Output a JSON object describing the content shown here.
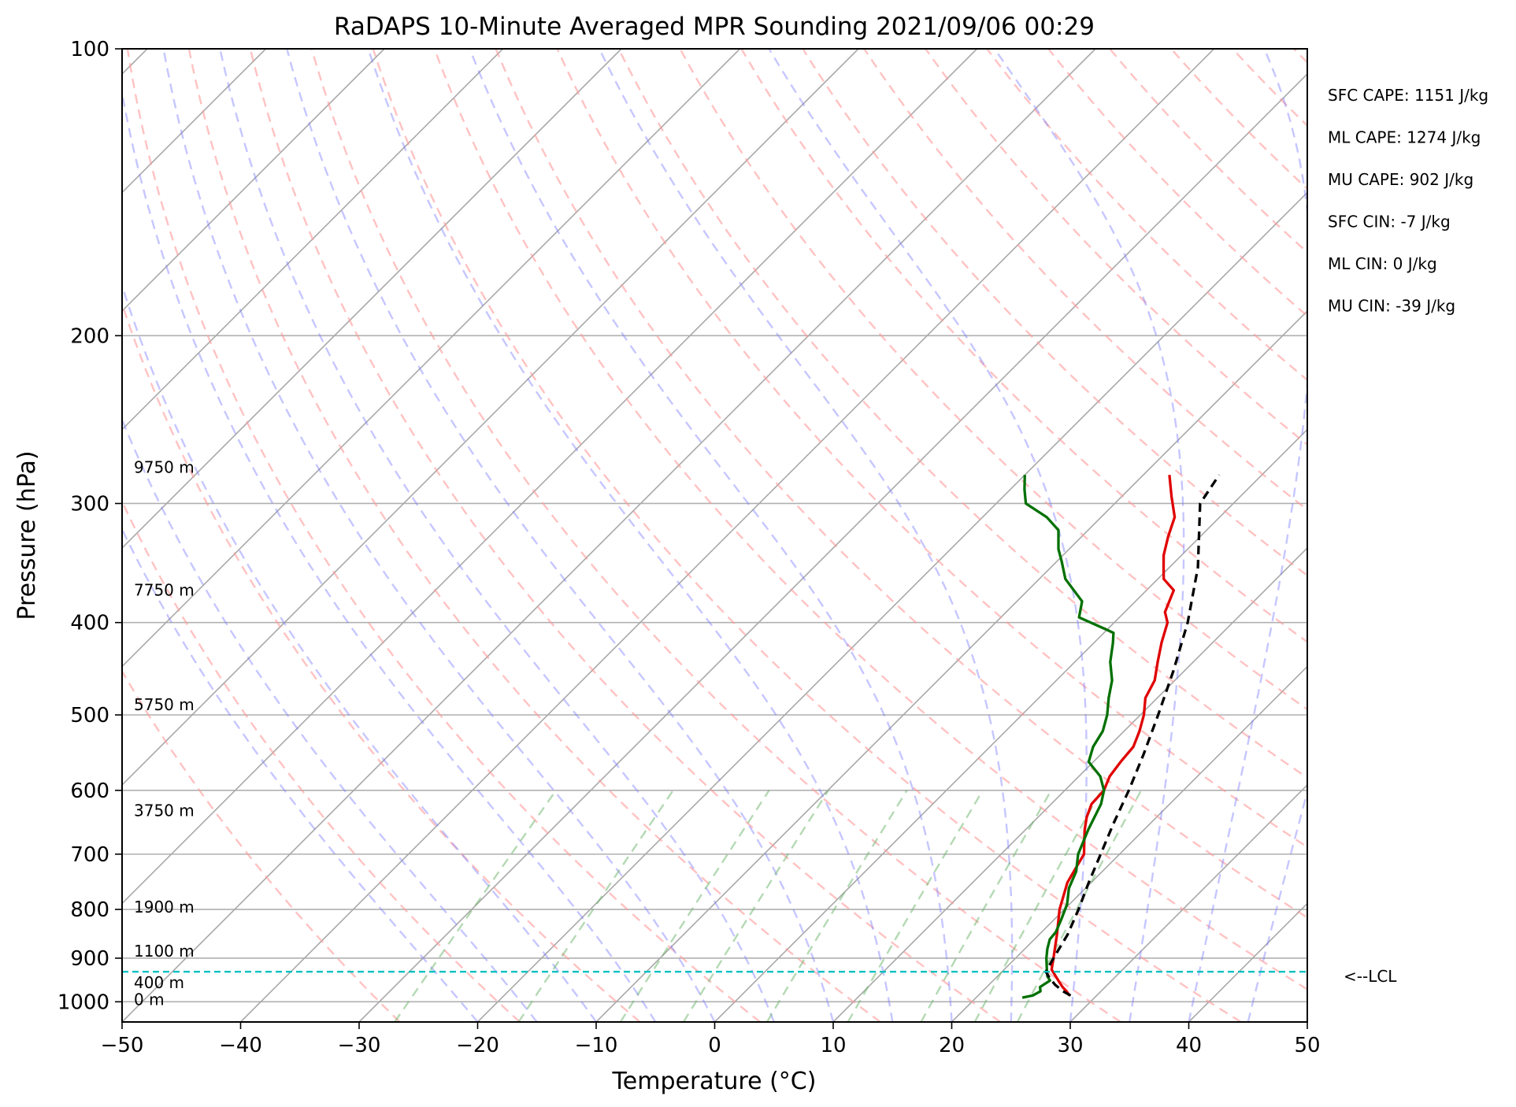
{
  "chart_data": {
    "type": "line",
    "title": "RaDAPS 10-Minute Averaged MPR Sounding 2021/09/06 00:29",
    "xlabel": "Temperature (°C)",
    "ylabel": "Pressure (hPa)",
    "xlim": [
      -50,
      50
    ],
    "ylim": [
      1050,
      100
    ],
    "y_scale": "log",
    "grid": true,
    "x_ticks": [
      -50,
      -40,
      -30,
      -20,
      -10,
      0,
      10,
      20,
      30,
      40,
      50
    ],
    "x_tick_labels": [
      "−50",
      "−40",
      "−30",
      "−20",
      "−10",
      "0",
      "10",
      "20",
      "30",
      "40",
      "50"
    ],
    "y_ticks": [
      100,
      200,
      300,
      400,
      500,
      600,
      700,
      800,
      900,
      1000
    ],
    "y_tick_labels": [
      "100",
      "200",
      "300",
      "400",
      "500",
      "600",
      "700",
      "800",
      "900",
      "1000"
    ],
    "series": [
      {
        "color": "#e00000",
        "p": [
          985,
          975,
          965,
          950,
          935,
          925,
          900,
          850,
          800,
          750,
          720,
          700,
          680,
          660,
          640,
          620,
          600,
          580,
          560,
          540,
          520,
          500,
          480,
          460,
          440,
          420,
          400,
          390,
          370,
          360,
          350,
          340,
          325,
          310,
          295,
          280
        ],
        "t": [
          27.7,
          27.1,
          26.4,
          25.5,
          24.6,
          24.0,
          23.2,
          21.5,
          19.6,
          18.0,
          17.4,
          17.0,
          16.0,
          15.0,
          14.1,
          13.4,
          13.3,
          12.6,
          12.3,
          12.1,
          11.3,
          10.3,
          9.0,
          8.3,
          7.0,
          5.7,
          4.5,
          3.4,
          2.3,
          0.5,
          -0.5,
          -1.5,
          -2.7,
          -3.8,
          -5.8,
          -7.8
        ]
      },
      {
        "color": "#007000",
        "p": [
          990,
          985,
          975,
          965,
          950,
          940,
          925,
          900,
          880,
          860,
          845,
          820,
          790,
          760,
          730,
          700,
          660,
          620,
          600,
          580,
          560,
          540,
          520,
          500,
          480,
          460,
          440,
          420,
          410,
          395,
          380,
          360,
          345,
          335,
          320,
          310,
          300,
          290,
          280
        ],
        "t": [
          23.9,
          24.6,
          24.9,
          24.5,
          24.8,
          24.2,
          23.6,
          22.6,
          21.9,
          21.3,
          21.2,
          20.6,
          19.8,
          18.6,
          17.8,
          16.5,
          15.3,
          14.2,
          13.3,
          11.8,
          9.6,
          8.7,
          8.2,
          7.2,
          5.9,
          4.7,
          3.0,
          1.6,
          0.8,
          -3.4,
          -4.5,
          -7.8,
          -9.6,
          -10.9,
          -12.5,
          -14.6,
          -17.5,
          -18.8,
          -20.0
        ]
      },
      {
        "color": "#000000",
        "dashed": true,
        "p": [
          985,
          975,
          960,
          945,
          930,
          900,
          850,
          800,
          750,
          700,
          650,
          600,
          550,
          500,
          450,
          400,
          350,
          300,
          280
        ],
        "t": [
          27.8,
          26.8,
          25.6,
          24.6,
          23.7,
          23.2,
          22.4,
          21.2,
          19.8,
          18.4,
          16.9,
          15.4,
          13.6,
          11.5,
          9.1,
          6.2,
          2.4,
          -2.8,
          -3.6
        ]
      }
    ],
    "annotations": [
      {
        "text": "SFC CAPE: 1151 J/kg"
      },
      {
        "text": "ML CAPE: 1274 J/kg"
      },
      {
        "text": "MU CAPE: 902 J/kg"
      },
      {
        "text": "SFC CIN: -7 J/kg"
      },
      {
        "text": "ML CIN: 0 J/kg"
      },
      {
        "text": "MU CIN: -39 J/kg"
      }
    ],
    "height_labels": [
      {
        "text": "9750 m",
        "p": 275
      },
      {
        "text": "7750 m",
        "p": 370
      },
      {
        "text": "5750 m",
        "p": 488
      },
      {
        "text": "3750 m",
        "p": 630
      },
      {
        "text": "1900 m",
        "p": 795
      },
      {
        "text": "1100 m",
        "p": 885
      },
      {
        "text": "400 m",
        "p": 955
      },
      {
        "text": "0 m",
        "p": 995
      }
    ],
    "lcl": {
      "p": 930,
      "label": "<--LCL",
      "color": "#00c0c0"
    }
  }
}
